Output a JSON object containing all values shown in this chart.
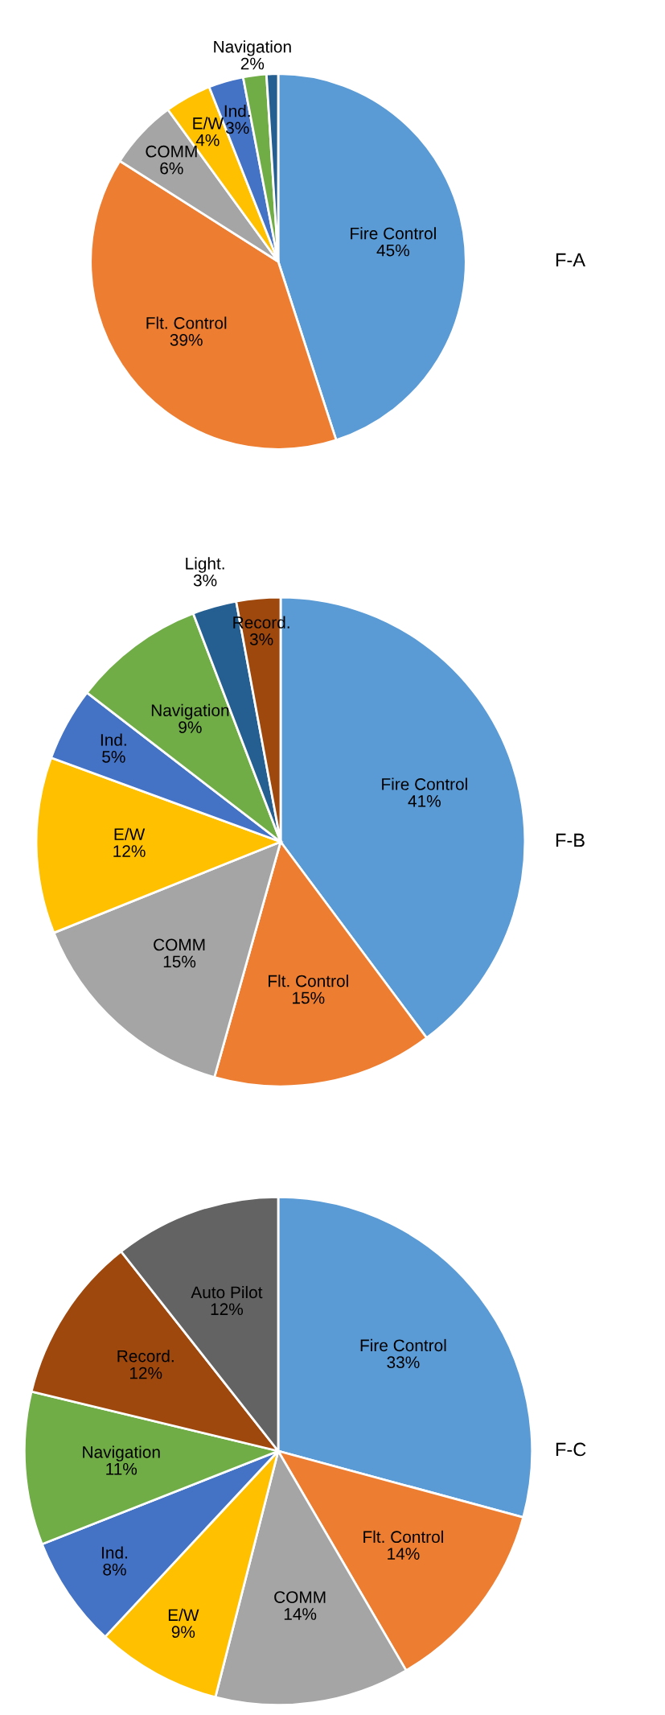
{
  "chart_data": [
    {
      "type": "pie",
      "title": "F-A",
      "categories": [
        "Fire Control",
        "Flt. Control",
        "COMM",
        "E/W",
        "Ind.",
        "Navigation",
        null
      ],
      "values": [
        45,
        39,
        6,
        4,
        3,
        2,
        1
      ],
      "colors": [
        "#5b9bd5",
        "#ed7d31",
        "#a5a5a5",
        "#ffc000",
        "#4472c4",
        "#70ad47",
        "#255e91"
      ],
      "value_labels": [
        "45%",
        "39%",
        "6%",
        "4%",
        "3%",
        "2%",
        null
      ]
    },
    {
      "type": "pie",
      "title": "F-B",
      "categories": [
        "Fire Control",
        "Flt. Control",
        "COMM",
        "E/W",
        "Ind.",
        "Navigation",
        "Light.",
        "Record."
      ],
      "values": [
        41,
        15,
        15,
        12,
        5,
        9,
        3,
        3
      ],
      "colors": [
        "#5b9bd5",
        "#ed7d31",
        "#a5a5a5",
        "#ffc000",
        "#4472c4",
        "#70ad47",
        "#255e91",
        "#9e480e"
      ],
      "value_labels": [
        "41%",
        "15%",
        "15%",
        "12%",
        "5%",
        "9%",
        "3%",
        "3%"
      ]
    },
    {
      "type": "pie",
      "title": "F-C",
      "categories": [
        "Fire Control",
        "Flt. Control",
        "COMM",
        "E/W",
        "Ind.",
        "Navigation",
        "Record.",
        "Auto Pilot"
      ],
      "values": [
        33,
        14,
        14,
        9,
        8,
        11,
        12,
        12
      ],
      "colors": [
        "#5b9bd5",
        "#ed7d31",
        "#a5a5a5",
        "#ffc000",
        "#4472c4",
        "#70ad47",
        "#9e480e",
        "#636363"
      ],
      "value_labels": [
        "33%",
        "14%",
        "14%",
        "9%",
        "8%",
        "11%",
        "12%",
        "12%"
      ]
    }
  ]
}
